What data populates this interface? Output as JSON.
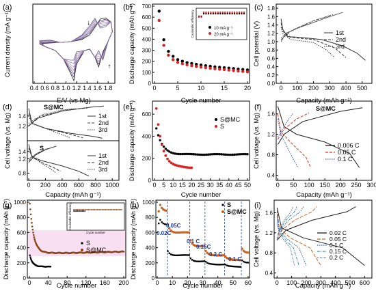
{
  "figure": {
    "panels": [
      {
        "id": "a",
        "label": "(a)",
        "xlabel": "E/V (vs Mg)",
        "ylabel": "Current density (mA g⁻¹)",
        "xticks": [
          "0.4",
          "0.6",
          "0.8",
          "1.0",
          "1.2",
          "1.4",
          "1.6",
          "1.8"
        ]
      },
      {
        "id": "b",
        "label": "(b)",
        "xlabel": "Cycle number",
        "ylabel": "Discharge capacity (mAh g⁻¹)",
        "xticks": [
          "0",
          "5",
          "10",
          "15",
          "20"
        ],
        "yticks": [
          "0",
          "100",
          "200",
          "300",
          "400",
          "500",
          "600",
          "700"
        ],
        "inset_ylabel": "Coulombic efficiency",
        "legend": [
          "10 mA g⁻¹",
          "20 mA g⁻¹"
        ]
      },
      {
        "id": "c",
        "label": "(c)",
        "xlabel": "Capacity (mAh g⁻¹)",
        "ylabel": "Cell potential (V)",
        "xticks": [
          "0",
          "100",
          "200",
          "300",
          "400",
          "500"
        ],
        "yticks": [
          "0.0",
          "0.2",
          "0.4",
          "0.6",
          "0.8",
          "1.0",
          "1.2",
          "1.4",
          "1.6",
          "1.8"
        ],
        "legend": [
          "1st",
          "2nd",
          "3rd"
        ]
      },
      {
        "id": "d",
        "label": "(d)",
        "xlabel": "Capacity (mAh g⁻¹)",
        "ylabel": "Cell voltage (vs. Mg)",
        "xticks": [
          "0",
          "200",
          "400",
          "600",
          "800",
          "1000"
        ],
        "yticks_top": [
          "1.2",
          "1.4"
        ],
        "yticks_bottom": [
          "0.8",
          "1.2",
          "1.4"
        ],
        "label_top": "S@MC",
        "label_bottom": "S",
        "legend": [
          "1st",
          "2nd",
          "3rd"
        ]
      },
      {
        "id": "e",
        "label": "(e)",
        "xlabel": "Cycle number",
        "ylabel": "Discharge capacity (mAh g⁻¹)",
        "xticks": [
          "0",
          "5",
          "10",
          "15",
          "20",
          "25",
          "30",
          "35",
          "40",
          "45",
          "50"
        ],
        "yticks": [
          "0",
          "200",
          "400",
          "600"
        ],
        "legend": [
          "S@MC",
          "S"
        ]
      },
      {
        "id": "f",
        "label": "(f)",
        "xlabel": "Capacity (mAh g⁻¹)",
        "ylabel": "Cell voltage (vs. Mg)",
        "xticks": [
          "0",
          "50",
          "100",
          "150",
          "200",
          "250",
          "300"
        ],
        "yticks": [
          "0.4",
          "0.8",
          "1.2",
          "1.6"
        ],
        "annotation": "S@MC",
        "legend": [
          "0.006 C",
          "0.05 C",
          "0.1 C"
        ]
      },
      {
        "id": "g",
        "label": "(g)",
        "xlabel": "Cycle number",
        "ylabel": "Discharge capacity (mAh g⁻¹)",
        "xticks": [
          "0",
          "40",
          "80",
          "120",
          "160",
          "200"
        ],
        "yticks": [
          "0",
          "200",
          "400",
          "600",
          "800",
          "1000"
        ],
        "inset_ylabel": "Coulombic efficiency",
        "inset_xlabel": "Cycle number",
        "legend": [
          "S",
          "S@MC"
        ]
      },
      {
        "id": "h",
        "label": "(h)",
        "xlabel": "Cycle number",
        "ylabel": "Discharge capacity (mAh g⁻¹)",
        "xticks": [
          "0",
          "10",
          "20",
          "30",
          "40",
          "50",
          "60"
        ],
        "yticks": [
          "0",
          "200",
          "400",
          "600",
          "800",
          "1000"
        ],
        "rates": [
          "0.02C",
          "0.05C",
          "0.1 C",
          "0.15C",
          "0.2 C",
          "0.1 C"
        ],
        "legend": [
          "S",
          "S@MC"
        ]
      },
      {
        "id": "i",
        "label": "(i)",
        "xlabel": "Capacity (mAh g⁻¹)",
        "ylabel": "Cell voltage (vs. Mg)",
        "xticks": [
          "0",
          "100",
          "200",
          "300",
          "400",
          "500",
          "600"
        ],
        "yticks": [
          "0.4",
          "0.8",
          "1.2",
          "1.6"
        ],
        "legend": [
          "0.02 C",
          "0.05 C",
          "0.1 C",
          "0.15 C",
          "0.2 C"
        ]
      }
    ]
  },
  "chart_data": [
    {
      "panel": "b",
      "type": "scatter",
      "x": [
        1,
        2,
        3,
        4,
        5,
        6,
        7,
        8,
        9,
        10,
        11,
        12,
        13,
        14,
        15,
        16,
        17,
        18,
        19,
        20
      ],
      "series": [
        {
          "name": "10 mA g⁻¹",
          "color": "#000000",
          "values": [
            655,
            395,
            290,
            245,
            215,
            200,
            188,
            180,
            172,
            166,
            160,
            155,
            150,
            146,
            142,
            138,
            134,
            130,
            126,
            122
          ]
        },
        {
          "name": "20 mA g⁻¹",
          "color": "#e02020",
          "values": [
            570,
            345,
            255,
            215,
            190,
            178,
            168,
            160,
            153,
            147,
            142,
            137,
            132,
            128,
            124,
            120,
            116,
            112,
            108,
            104
          ]
        }
      ],
      "xlim": [
        0,
        20
      ],
      "ylim": [
        0,
        700
      ]
    },
    {
      "panel": "e",
      "type": "scatter",
      "series": [
        {
          "name": "S@MC",
          "color": "#000000",
          "x_range": [
            1,
            50
          ],
          "start": 470,
          "plateau": 235
        },
        {
          "name": "S",
          "color": "#e02020",
          "x_range": [
            1,
            20
          ],
          "start": 650,
          "plateau": 115
        }
      ],
      "xlim": [
        0,
        50
      ],
      "ylim": [
        0,
        700
      ]
    },
    {
      "panel": "g",
      "type": "scatter",
      "series": [
        {
          "name": "S",
          "color": "#000000",
          "x_range": [
            1,
            45
          ],
          "start": 300,
          "plateau": 150
        },
        {
          "name": "S@MC",
          "color": "#8b4513",
          "x_range": [
            1,
            200
          ],
          "start": 980,
          "plateau": 330
        }
      ],
      "xlim": [
        0,
        200
      ],
      "ylim": [
        0,
        1000
      ]
    },
    {
      "panel": "h",
      "type": "scatter",
      "rates": [
        "0.02C",
        "0.05C",
        "0.1 C",
        "0.15C",
        "0.2 C",
        "0.1 C"
      ],
      "series": [
        {
          "name": "S",
          "color": "#000000",
          "levels": [
            700,
            300,
            220,
            180,
            150,
            200
          ]
        },
        {
          "name": "S@MC",
          "color": "#c8641e",
          "levels": [
            880,
            600,
            420,
            300,
            240,
            330
          ]
        }
      ],
      "xlim": [
        0,
        60
      ],
      "ylim": [
        0,
        1000
      ]
    }
  ]
}
